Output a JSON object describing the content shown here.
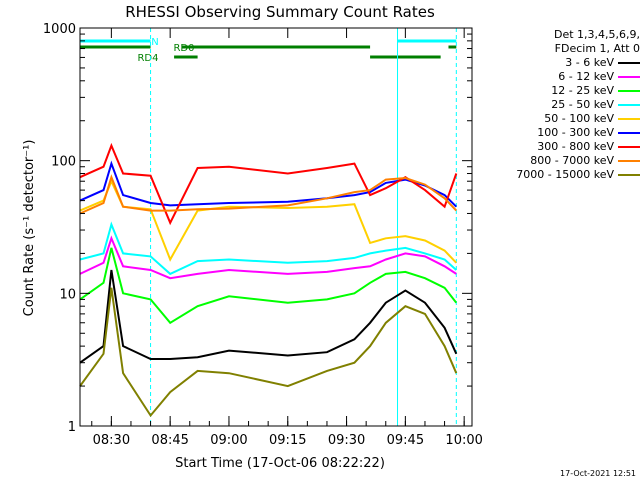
{
  "chart_data": {
    "type": "line",
    "title": "RHESSI Observing Summary Count Rates",
    "ylabel": "Count Rate (s⁻¹ detector⁻¹)",
    "xlabel": "Start Time (17-Oct-06 08:22:22)",
    "x_range": [
      "08:22",
      "10:02"
    ],
    "ylim": [
      1,
      1000
    ],
    "yscale": "log",
    "x_ticks": [
      "08:30",
      "08:45",
      "09:00",
      "09:15",
      "09:30",
      "09:45",
      "10:00"
    ],
    "y_ticks": [
      "1",
      "10",
      "100",
      "1000"
    ],
    "legend_header": [
      "Det 1,3,4,5,6,9,",
      "FDecim 1, Att 0"
    ],
    "timestamp": "17-Oct-2021 12:51",
    "flags": [
      {
        "label": "N",
        "color": "#00ffff",
        "segments": [
          [
            "08:22",
            "08:40"
          ],
          [
            "09:43",
            "09:58"
          ]
        ]
      },
      {
        "label": "RD0",
        "color": "#007f00",
        "segments": [
          [
            "08:22",
            "08:40"
          ],
          [
            "08:48",
            "09:36"
          ],
          [
            "09:56",
            "09:58"
          ]
        ]
      },
      {
        "label": "RD4",
        "color": "#007f00",
        "segments": [
          [
            "08:46",
            "08:52"
          ],
          [
            "09:36",
            "09:54"
          ]
        ]
      }
    ],
    "markers": [
      {
        "time": "08:22",
        "style": "solid",
        "color": "#00ffff"
      },
      {
        "time": "08:40",
        "style": "dashed",
        "color": "#00ffff"
      },
      {
        "time": "09:43",
        "style": "solid",
        "color": "#00ffff"
      },
      {
        "time": "09:58",
        "style": "dashed",
        "color": "#00ffff"
      }
    ],
    "x": [
      "08:22",
      "08:28",
      "08:30",
      "08:33",
      "08:40",
      "08:45",
      "08:52",
      "09:00",
      "09:15",
      "09:25",
      "09:32",
      "09:36",
      "09:40",
      "09:45",
      "09:50",
      "09:55",
      "09:58"
    ],
    "series": [
      {
        "name": "3 - 6 keV",
        "color": "#000000",
        "values": [
          3.0,
          4.0,
          15.0,
          4.0,
          3.2,
          3.2,
          3.3,
          3.7,
          3.4,
          3.6,
          4.5,
          6.0,
          8.5,
          10.5,
          8.5,
          5.5,
          3.5
        ]
      },
      {
        "name": "6 - 12 keV",
        "color": "#ff00ff",
        "values": [
          14.0,
          17.0,
          26.0,
          16.0,
          15.0,
          13.0,
          14.0,
          15.0,
          14.0,
          14.5,
          15.5,
          16.0,
          18.0,
          20.0,
          19.0,
          16.0,
          14.0
        ]
      },
      {
        "name": "12 - 25 keV",
        "color": "#00ff00",
        "values": [
          9.0,
          12.0,
          22.0,
          10.0,
          9.0,
          6.0,
          8.0,
          9.5,
          8.5,
          9.0,
          10.0,
          12.0,
          14.0,
          14.5,
          13.0,
          11.0,
          8.5
        ]
      },
      {
        "name": "25 - 50 keV",
        "color": "#00ffff",
        "values": [
          18.0,
          20.0,
          33.0,
          20.0,
          19.0,
          14.0,
          17.5,
          18.0,
          17.0,
          17.5,
          18.5,
          20.0,
          21.0,
          22.0,
          20.0,
          18.0,
          15.0
        ]
      },
      {
        "name": "50 - 100 keV",
        "color": "#ffd000",
        "values": [
          42.0,
          50.0,
          70.0,
          45.0,
          43.0,
          18.0,
          42.0,
          45.0,
          44.0,
          45.0,
          47.0,
          24.0,
          26.0,
          27.0,
          25.0,
          21.0,
          17.0
        ]
      },
      {
        "name": "100 - 300 keV",
        "color": "#0000ff",
        "values": [
          50.0,
          60.0,
          95.0,
          55.0,
          48.0,
          46.0,
          47.0,
          48.0,
          49.0,
          52.0,
          55.0,
          58.0,
          68.0,
          72.0,
          65.0,
          55.0,
          45.0
        ]
      },
      {
        "name": "300 - 800 keV",
        "color": "#ff0000",
        "values": [
          75.0,
          90.0,
          130.0,
          80.0,
          77.0,
          34.0,
          88.0,
          90.0,
          80.0,
          88.0,
          95.0,
          55.0,
          62.0,
          75.0,
          60.0,
          45.0,
          80.0
        ]
      },
      {
        "name": "800 - 7000 keV",
        "color": "#ff8000",
        "values": [
          40.0,
          48.0,
          75.0,
          45.0,
          42.0,
          42.0,
          43.0,
          43.5,
          46.0,
          52.0,
          58.0,
          60.0,
          72.0,
          74.0,
          66.0,
          52.0,
          42.0
        ]
      },
      {
        "name": "7000 - 15000 keV",
        "color": "#808000",
        "values": [
          2.0,
          3.5,
          11.0,
          2.5,
          1.2,
          1.8,
          2.6,
          2.5,
          2.0,
          2.6,
          3.0,
          4.0,
          6.0,
          8.0,
          7.0,
          4.0,
          2.5
        ]
      }
    ]
  }
}
